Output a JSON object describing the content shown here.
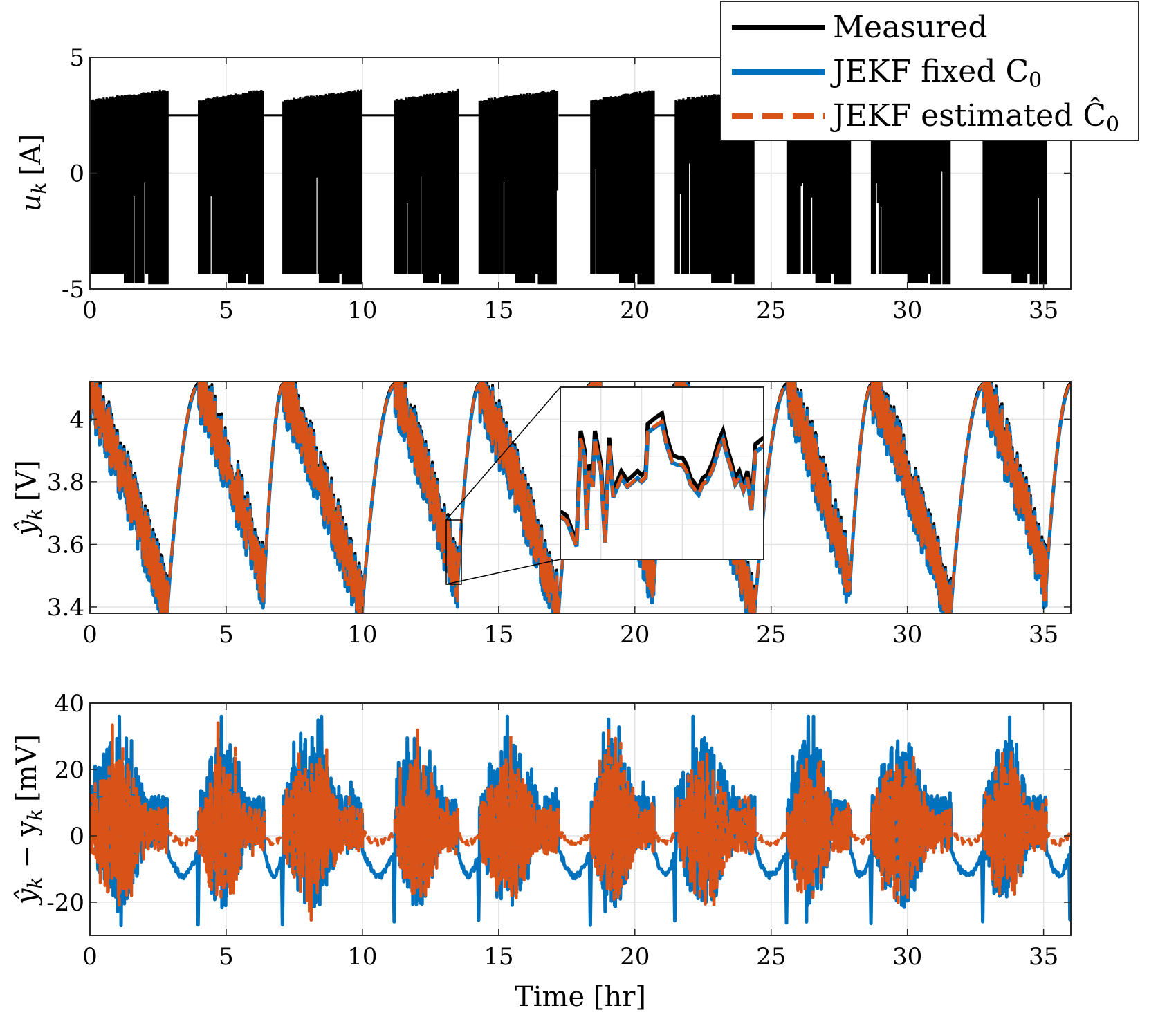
{
  "colors": {
    "measured": "#000000",
    "fixed": "#0072BD",
    "estimated": "#D95319",
    "grid": "#e4e4e4"
  },
  "legend": {
    "location": "top-right",
    "entries": [
      {
        "key": "measured",
        "label": "Measured"
      },
      {
        "key": "fixed",
        "label": "JEKF fixed C",
        "sub": "0"
      },
      {
        "key": "estimated",
        "label": "JEKF estimated Ĉ",
        "sub": "0"
      }
    ]
  },
  "chart_data": [
    {
      "id": "current",
      "type": "line",
      "ylabel": "u",
      "ylabel_sub": "k",
      "ylabel_unit": "[A]",
      "xlim": [
        0,
        36
      ],
      "ylim": [
        -5,
        5
      ],
      "xticks": [
        "0",
        "5",
        "10",
        "15",
        "20",
        "25",
        "30",
        "35"
      ],
      "xtick_values": [
        0,
        5,
        10,
        15,
        20,
        25,
        30,
        35
      ],
      "yticks": [
        "-5",
        "0",
        "5"
      ],
      "ytick_values": [
        -5,
        0,
        5
      ],
      "grid": true,
      "cycles": [
        {
          "start": 0.0,
          "end": 2.85,
          "rest_end": 4.0
        },
        {
          "start": 4.0,
          "end": 6.4,
          "rest_end": 7.1
        },
        {
          "start": 7.1,
          "end": 10.0,
          "rest_end": 11.2
        },
        {
          "start": 11.2,
          "end": 13.5,
          "rest_end": 14.3
        },
        {
          "start": 14.3,
          "end": 17.2,
          "rest_end": 18.4
        },
        {
          "start": 18.4,
          "end": 20.7,
          "rest_end": 21.5
        },
        {
          "start": 21.5,
          "end": 24.4,
          "rest_end": 25.6
        },
        {
          "start": 25.6,
          "end": 27.9,
          "rest_end": 28.7
        },
        {
          "start": 28.7,
          "end": 31.6,
          "rest_end": 32.8
        },
        {
          "start": 32.8,
          "end": 35.1,
          "rest_end": 36.0
        }
      ],
      "rest_current": 2.5,
      "peak_charge": 3.5,
      "peak_discharge": -4.6
    },
    {
      "id": "voltage",
      "type": "line",
      "ylabel": "ŷ",
      "ylabel_sub": "k",
      "ylabel_unit": "[V]",
      "xlim": [
        0,
        36
      ],
      "ylim": [
        3.38,
        4.12
      ],
      "xticks": [
        "0",
        "5",
        "10",
        "15",
        "20",
        "25",
        "30",
        "35"
      ],
      "xtick_values": [
        0,
        5,
        10,
        15,
        20,
        25,
        30,
        35
      ],
      "yticks": [
        "3.4",
        "3.6",
        "3.8",
        "4"
      ],
      "ytick_values": [
        3.4,
        3.6,
        3.8,
        4.0
      ],
      "grid": true,
      "series_names": [
        "Measured",
        "JEKF fixed C0",
        "JEKF estimated Ĉ0"
      ],
      "peaks": [
        {
          "t": 0.0,
          "v": 4.1
        },
        {
          "t": 2.85,
          "v": 3.4
        },
        {
          "t": 4.0,
          "v": 4.11
        },
        {
          "t": 6.4,
          "v": 3.48
        },
        {
          "t": 7.1,
          "v": 4.11
        },
        {
          "t": 10.0,
          "v": 3.4
        },
        {
          "t": 11.2,
          "v": 4.11
        },
        {
          "t": 13.5,
          "v": 3.48
        },
        {
          "t": 14.3,
          "v": 4.11
        },
        {
          "t": 17.2,
          "v": 3.39
        },
        {
          "t": 18.4,
          "v": 4.11
        },
        {
          "t": 20.7,
          "v": 3.48
        },
        {
          "t": 21.5,
          "v": 4.11
        },
        {
          "t": 24.4,
          "v": 3.39
        },
        {
          "t": 25.6,
          "v": 4.11
        },
        {
          "t": 27.9,
          "v": 3.48
        },
        {
          "t": 28.7,
          "v": 4.11
        },
        {
          "t": 31.6,
          "v": 3.39
        },
        {
          "t": 32.8,
          "v": 4.11
        },
        {
          "t": 35.1,
          "v": 3.48
        },
        {
          "t": 36.0,
          "v": 4.11
        }
      ],
      "zoom_region": {
        "t": [
          13.0,
          13.5
        ],
        "v": [
          3.47,
          3.68
        ]
      }
    },
    {
      "id": "error",
      "type": "line",
      "ylabel": "ŷ",
      "ylabel_sub": "k",
      "ylabel_mid": " − y",
      "ylabel_sub2": "k",
      "ylabel_unit": "[mV]",
      "xlabel": "Time [hr]",
      "xlim": [
        0,
        36
      ],
      "ylim": [
        -30,
        40
      ],
      "xticks": [
        "0",
        "5",
        "10",
        "15",
        "20",
        "25",
        "30",
        "35"
      ],
      "xtick_values": [
        0,
        5,
        10,
        15,
        20,
        25,
        30,
        35
      ],
      "yticks": [
        "-20",
        "0",
        "20",
        "40"
      ],
      "ytick_values": [
        -20,
        0,
        20,
        40
      ],
      "grid": true,
      "series_names": [
        "JEKF fixed C0",
        "JEKF estimated Ĉ0"
      ],
      "fixed_range": [
        -28,
        37
      ],
      "estimated_range": [
        -25,
        35
      ]
    }
  ]
}
